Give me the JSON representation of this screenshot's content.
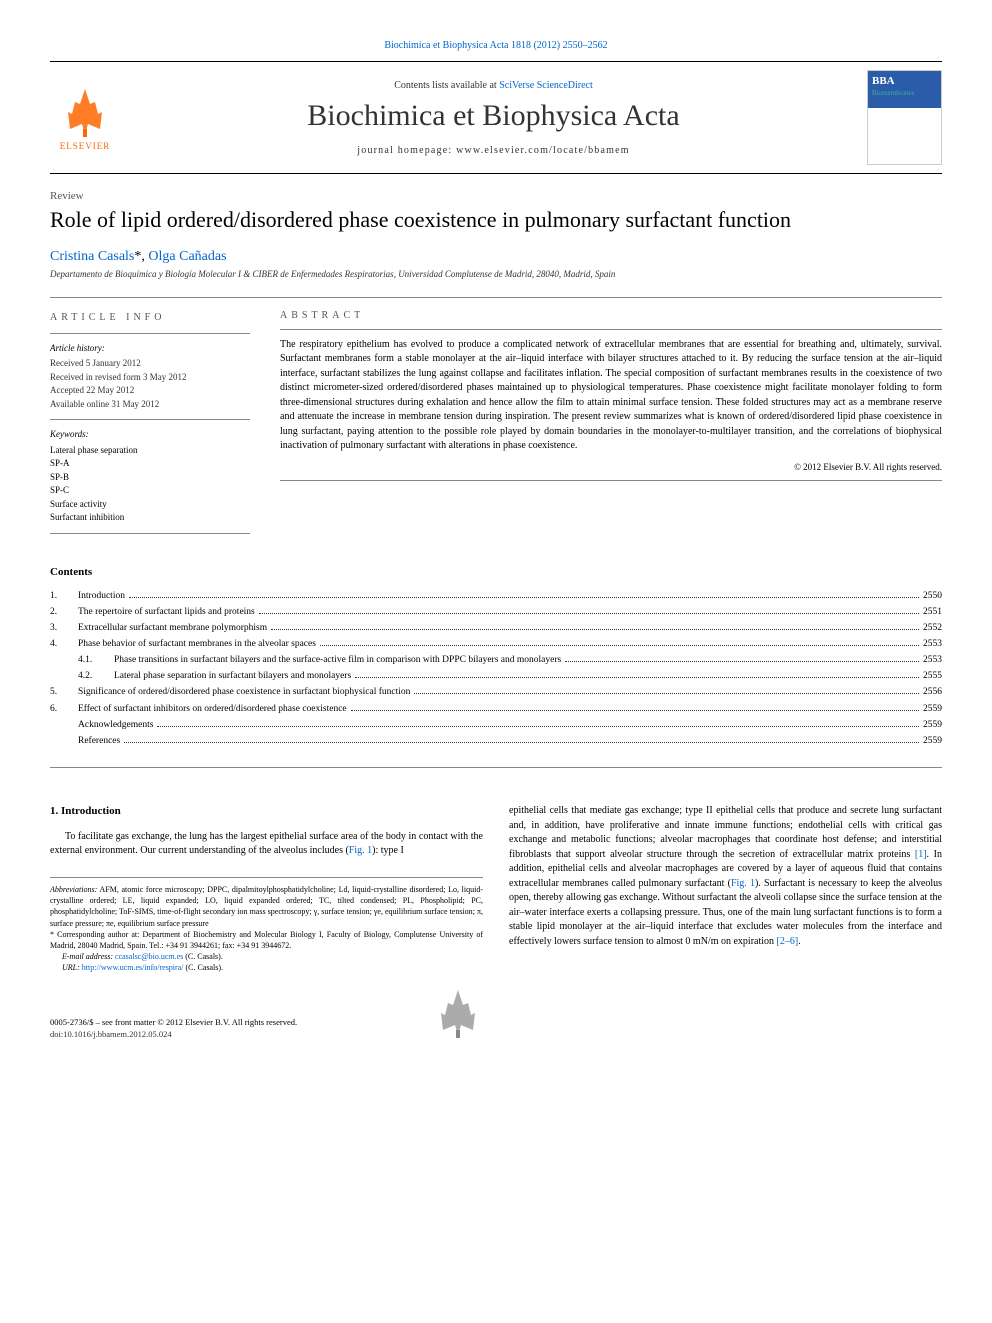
{
  "top_link": {
    "prefix": "Biochimica et Biophysica Acta 1818 (2012) 2550–2562",
    "href": "#"
  },
  "header": {
    "contents_at": "Contents lists available at",
    "sciverse": "SciVerse ScienceDirect",
    "journal": "Biochimica et Biophysica Acta",
    "homepage_label": "journal homepage:",
    "homepage_url": "www.elsevier.com/locate/bbamem",
    "elsevier": "ELSEVIER",
    "cover_bba": "BBA",
    "cover_sub": "Biomembranes"
  },
  "article_type": "Review",
  "title": "Role of lipid ordered/disordered phase coexistence in pulmonary surfactant function",
  "authors": {
    "a1": "Cristina Casals",
    "corr_mark": "*",
    "sep": ", ",
    "a2": "Olga Cañadas"
  },
  "affiliation": "Departamento de Bioquímica y Biología Molecular I & CIBER de Enfermedades Respiratorias, Universidad Complutense de Madrid, 28040, Madrid, Spain",
  "info": {
    "heading": "ARTICLE INFO",
    "history_head": "Article history:",
    "h1": "Received 5 January 2012",
    "h2": "Received in revised form 3 May 2012",
    "h3": "Accepted 22 May 2012",
    "h4": "Available online 31 May 2012",
    "kw_head": "Keywords:",
    "k1": "Lateral phase separation",
    "k2": "SP-A",
    "k3": "SP-B",
    "k4": "SP-C",
    "k5": "Surface activity",
    "k6": "Surfactant inhibition"
  },
  "abstract": {
    "heading": "ABSTRACT",
    "text": "The respiratory epithelium has evolved to produce a complicated network of extracellular membranes that are essential for breathing and, ultimately, survival. Surfactant membranes form a stable monolayer at the air–liquid interface with bilayer structures attached to it. By reducing the surface tension at the air–liquid interface, surfactant stabilizes the lung against collapse and facilitates inflation. The special composition of surfactant membranes results in the coexistence of two distinct micrometer-sized ordered/disordered phases maintained up to physiological temperatures. Phase coexistence might facilitate monolayer folding to form three-dimensional structures during exhalation and hence allow the film to attain minimal surface tension. These folded structures may act as a membrane reserve and attenuate the increase in membrane tension during inspiration. The present review summarizes what is known of ordered/disordered lipid phase coexistence in lung surfactant, paying attention to the possible role played by domain boundaries in the monolayer-to-multilayer transition, and the correlations of biophysical inactivation of pulmonary surfactant with alterations in phase coexistence.",
    "copyright": "© 2012 Elsevier B.V. All rights reserved."
  },
  "contents_heading": "Contents",
  "toc": [
    {
      "num": "1.",
      "label": "Introduction",
      "page": "2550"
    },
    {
      "num": "2.",
      "label": "The repertoire of surfactant lipids and proteins",
      "page": "2551"
    },
    {
      "num": "3.",
      "label": "Extracellular surfactant membrane polymorphism",
      "page": "2552"
    },
    {
      "num": "4.",
      "label": "Phase behavior of surfactant membranes in the alveolar spaces",
      "page": "2553"
    },
    {
      "sub": "4.1.",
      "label": "Phase transitions in surfactant bilayers and the surface-active film in comparison with DPPC bilayers and monolayers",
      "page": "2553"
    },
    {
      "sub": "4.2.",
      "label": "Lateral phase separation in surfactant bilayers and monolayers",
      "page": "2555"
    },
    {
      "num": "5.",
      "label": "Significance of ordered/disordered phase coexistence in surfactant biophysical function",
      "page": "2556"
    },
    {
      "num": "6.",
      "label": "Effect of surfactant inhibitors on ordered/disordered phase coexistence",
      "page": "2559"
    },
    {
      "num": "",
      "label": "Acknowledgements",
      "page": "2559"
    },
    {
      "num": "",
      "label": "References",
      "page": "2559"
    }
  ],
  "section1_heading": "1. Introduction",
  "body": {
    "left_p1": "To facilitate gas exchange, the lung has the largest epithelial surface area of the body in contact with the external environment. Our current understanding of the alveolus includes (",
    "left_fig1": "Fig. 1",
    "left_p1_end": "): type I",
    "right_p1_a": "epithelial cells that mediate gas exchange; type II epithelial cells that produce and secrete lung surfactant and, in addition, have proliferative and innate immune functions; endothelial cells with critical gas exchange and metabolic functions; alveolar macrophages that coordinate host defense; and interstitial fibroblasts that support alveolar structure through the secretion of extracellular matrix proteins ",
    "right_ref1": "[1]",
    "right_p1_b": ". In addition, epithelial cells and alveolar macrophages are covered by a layer of aqueous fluid that contains extracellular membranes called pulmonary surfactant (",
    "right_fig1": "Fig. 1",
    "right_p1_c": "). Surfactant is necessary to keep the alveolus open, thereby allowing gas exchange. Without surfactant the alveoli collapse since the surface tension at the air–water interface exerts a collapsing pressure. Thus, one of the main lung surfactant functions is to form a stable lipid monolayer at the air–liquid interface that excludes water molecules from the interface and effectively lowers surface tension to almost 0 mN/m on expiration ",
    "right_ref2": "[2–6]",
    "right_p1_d": "."
  },
  "footnotes": {
    "abbrev_label": "Abbreviations:",
    "abbrev": " AFM, atomic force microscopy; DPPC, dipalmitoylphosphatidylcholine; Ld, liquid-crystalline disordered; Lo, liquid-crystalline ordered; LE, liquid expanded; LO, liquid expanded ordered; TC, tilted condensed; PL, Phospholipid; PC, phosphatidylcholine; ToF-SIMS, time-of-flight secondary ion mass spectroscopy; γ, surface tension; γe, equilibrium surface tension; π, surface pressure; πe, equilibrium surface pressure",
    "corr_label": "* Corresponding author at:",
    "corr": " Department of Biochemistry and Molecular Biology I, Faculty of Biology, Complutense University of Madrid, 28040 Madrid, Spain. Tel.: +34 91 3944261; fax: +34 91 3944672.",
    "email_label": "E-mail address:",
    "email": "ccasalsc@bio.ucm.es",
    "email_who": " (C. Casals).",
    "url_label": "URL:",
    "url": "http://www.ucm.es/info/respira/",
    "url_who": " (C. Casals)."
  },
  "footer": {
    "line1": "0005-2736/$ – see front matter © 2012 Elsevier B.V. All rights reserved.",
    "doi": "doi:10.1016/j.bbamem.2012.05.024"
  },
  "colors": {
    "link": "#0066cc",
    "elsevier_orange": "#ff6600",
    "cover_blue": "#2a5caa",
    "cover_green": "#4a9",
    "rule": "#888888"
  }
}
